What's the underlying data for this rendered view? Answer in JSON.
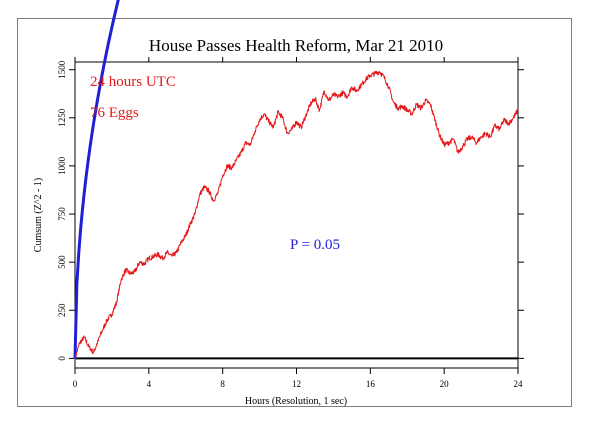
{
  "chart_data": {
    "type": "line",
    "title": "House Passes Health Reform, Mar 21 2010",
    "xlabel": "Hours (Resolution, 1 sec)",
    "ylabel": "Cumsum (Z^2 - 1)",
    "xlim": [
      0,
      24
    ],
    "ylim": [
      -50,
      1540
    ],
    "x_ticks": [
      0,
      4,
      8,
      12,
      16,
      20,
      24
    ],
    "y_ticks": [
      0,
      250,
      500,
      750,
      1000,
      1250,
      1500
    ],
    "annotations": [
      {
        "text": "24 hours UTC",
        "color": "#e31a1c"
      },
      {
        "text": "76 Eggs",
        "color": "#e31a1c"
      },
      {
        "text": "P = 0.05",
        "color": "#1f1fd6"
      }
    ],
    "series": [
      {
        "color": "#e31a1c",
        "x": [
          0,
          0.25,
          0.5,
          0.75,
          1.0,
          1.25,
          1.5,
          1.75,
          2.0,
          2.25,
          2.5,
          2.75,
          3.0,
          3.25,
          3.5,
          3.75,
          4.0,
          4.25,
          4.5,
          4.75,
          5.0,
          5.25,
          5.5,
          5.75,
          6.0,
          6.25,
          6.5,
          6.75,
          7.0,
          7.25,
          7.5,
          7.75,
          8.0,
          8.25,
          8.5,
          8.75,
          9.0,
          9.25,
          9.5,
          9.75,
          10.0,
          10.25,
          10.5,
          10.75,
          11.0,
          11.25,
          11.5,
          11.75,
          12.0,
          12.25,
          12.5,
          12.75,
          13.0,
          13.25,
          13.5,
          13.75,
          14.0,
          14.25,
          14.5,
          14.75,
          15.0,
          15.25,
          15.5,
          15.75,
          16.0,
          16.25,
          16.5,
          16.75,
          17.0,
          17.25,
          17.5,
          17.75,
          18.0,
          18.25,
          18.5,
          18.75,
          19.0,
          19.25,
          19.5,
          19.75,
          20.0,
          20.25,
          20.5,
          20.75,
          21.0,
          21.25,
          21.5,
          21.75,
          22.0,
          22.25,
          22.5,
          22.75,
          23.0,
          23.25,
          23.5,
          23.75,
          24.0
        ],
        "y": [
          0,
          80,
          110,
          60,
          30,
          90,
          150,
          200,
          230,
          290,
          410,
          460,
          440,
          450,
          500,
          490,
          520,
          530,
          540,
          520,
          550,
          530,
          550,
          600,
          640,
          700,
          750,
          850,
          890,
          870,
          820,
          860,
          950,
          1000,
          990,
          1030,
          1070,
          1120,
          1110,
          1180,
          1240,
          1270,
          1230,
          1200,
          1280,
          1250,
          1170,
          1190,
          1230,
          1200,
          1260,
          1320,
          1350,
          1290,
          1390,
          1340,
          1370,
          1360,
          1380,
          1360,
          1410,
          1390,
          1420,
          1450,
          1470,
          1480,
          1490,
          1460,
          1410,
          1330,
          1300,
          1310,
          1290,
          1270,
          1320,
          1300,
          1340,
          1320,
          1240,
          1160,
          1110,
          1120,
          1140,
          1070,
          1100,
          1140,
          1150,
          1120,
          1150,
          1170,
          1150,
          1210,
          1190,
          1240,
          1220,
          1250,
          1290
        ]
      },
      {
        "color": "#1f1fd6",
        "function": "1.645 * sqrt(2 * 76 * seconds)"
      },
      {
        "color": "#000000",
        "function": "zero baseline"
      }
    ]
  }
}
